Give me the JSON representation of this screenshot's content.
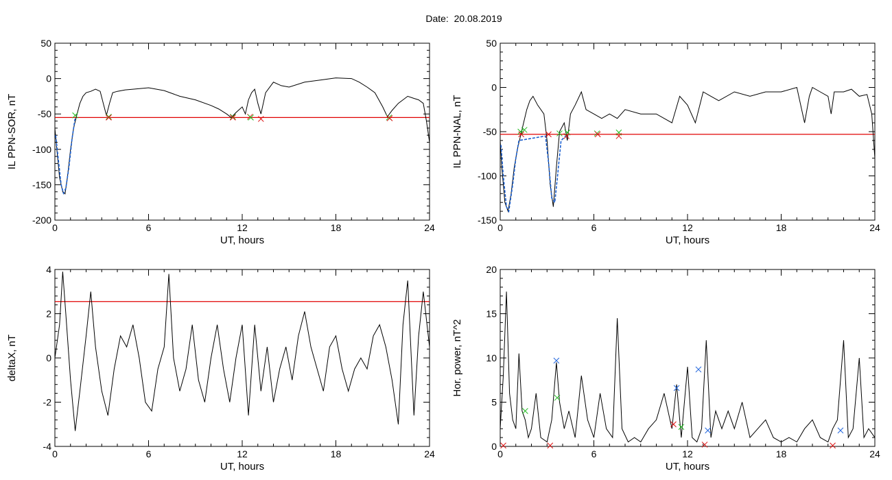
{
  "header": {
    "date_label": "Date:  20.08.2019"
  },
  "colors": {
    "trace": "#000000",
    "threshold": "#e00000",
    "fit": "#1a5fd0",
    "marker_green": "#22bb22",
    "marker_red": "#dd1111",
    "marker_blue": "#2266dd"
  },
  "chart_data": [
    {
      "id": "ppn-sor",
      "type": "line",
      "xlabel": "UT, hours",
      "ylabel": "IL PPN-SOR, nT",
      "xlim": [
        0,
        24
      ],
      "ylim": [
        -200,
        50
      ],
      "xticks": [
        0,
        6,
        12,
        18,
        24
      ],
      "yticks": [
        -200,
        -150,
        -100,
        -50,
        0,
        50
      ],
      "threshold": -55,
      "series": [
        {
          "x": [
            0,
            0.1,
            0.3,
            0.5,
            0.65,
            0.8,
            1.0,
            1.2,
            1.4,
            1.6,
            1.8,
            2.0,
            2.3,
            2.6,
            2.9,
            3.1,
            3.3,
            3.5,
            3.7,
            4.0,
            4.5,
            5,
            6,
            7,
            8,
            9,
            10,
            10.5,
            11,
            11.3,
            11.6,
            12.0,
            12.2,
            12.4,
            12.6,
            12.8,
            13.0,
            13.2,
            13.5,
            14,
            14.5,
            15,
            16,
            17,
            18,
            19,
            19.5,
            20,
            20.5,
            21,
            21.3,
            21.6,
            22,
            22.3,
            22.6,
            23,
            23.3,
            23.6,
            23.8,
            24
          ],
          "y": [
            -70,
            -95,
            -140,
            -160,
            -163,
            -140,
            -100,
            -70,
            -52,
            -35,
            -25,
            -20,
            -18,
            -15,
            -18,
            -35,
            -52,
            -35,
            -20,
            -18,
            -16,
            -15,
            -13,
            -17,
            -25,
            -30,
            -38,
            -43,
            -50,
            -55,
            -48,
            -40,
            -50,
            -30,
            -20,
            -15,
            -35,
            -50,
            -20,
            -5,
            -10,
            -12,
            -5,
            -2,
            1,
            0,
            -5,
            -12,
            -20,
            -40,
            -54,
            -45,
            -35,
            -30,
            -25,
            -28,
            -30,
            -35,
            -60,
            -90
          ]
        }
      ],
      "fit": {
        "x": [
          0.05,
          0.2,
          0.4,
          0.55,
          0.7,
          0.9,
          1.1,
          1.3
        ],
        "y": [
          -80,
          -110,
          -150,
          -162,
          -155,
          -125,
          -85,
          -55
        ]
      },
      "markers": [
        {
          "x": 1.3,
          "y": -52,
          "color": "green"
        },
        {
          "x": 3.45,
          "y": -54,
          "color": "green"
        },
        {
          "x": 3.45,
          "y": -55,
          "color": "red"
        },
        {
          "x": 11.4,
          "y": -54,
          "color": "green"
        },
        {
          "x": 11.4,
          "y": -55,
          "color": "red"
        },
        {
          "x": 12.5,
          "y": -54,
          "color": "red"
        },
        {
          "x": 12.55,
          "y": -55,
          "color": "green"
        },
        {
          "x": 13.2,
          "y": -57,
          "color": "red"
        },
        {
          "x": 21.4,
          "y": -55,
          "color": "green"
        },
        {
          "x": 21.45,
          "y": -56,
          "color": "red"
        }
      ]
    },
    {
      "id": "ppn-nal",
      "type": "line",
      "xlabel": "UT, hours",
      "ylabel": "IL PPN-NAL, nT",
      "xlim": [
        0,
        24
      ],
      "ylim": [
        -150,
        50
      ],
      "xticks": [
        0,
        6,
        12,
        18,
        24
      ],
      "yticks": [
        -150,
        -100,
        -50,
        0,
        50
      ],
      "threshold": -53,
      "series": [
        {
          "x": [
            0,
            0.1,
            0.3,
            0.5,
            0.7,
            0.9,
            1.1,
            1.3,
            1.5,
            1.7,
            1.9,
            2.1,
            2.4,
            2.8,
            3.0,
            3.2,
            3.4,
            3.6,
            3.8,
            4.1,
            4.3,
            4.5,
            4.8,
            5.2,
            5.5,
            6,
            6.5,
            7,
            7.5,
            8,
            9,
            10,
            11,
            11.5,
            12,
            12.5,
            13,
            13.5,
            14,
            15,
            16,
            17,
            18,
            19,
            19.5,
            19.8,
            20,
            20.5,
            21,
            21.2,
            21.4,
            22,
            22.5,
            23,
            23.5,
            23.8,
            24
          ],
          "y": [
            -60,
            -90,
            -130,
            -140,
            -120,
            -90,
            -70,
            -55,
            -40,
            -25,
            -15,
            -10,
            -20,
            -30,
            -60,
            -110,
            -135,
            -90,
            -50,
            -40,
            -60,
            -30,
            -20,
            -5,
            -25,
            -30,
            -35,
            -30,
            -35,
            -25,
            -30,
            -30,
            -40,
            -10,
            -20,
            -40,
            -5,
            -10,
            -15,
            -5,
            -10,
            -5,
            -5,
            0,
            -40,
            -10,
            0,
            -5,
            -10,
            -30,
            -5,
            -5,
            -2,
            -10,
            -8,
            -30,
            -80
          ]
        }
      ],
      "fit": {
        "x": [
          0.05,
          0.2,
          0.4,
          0.55,
          0.8,
          1.0,
          1.2,
          2.9,
          3.1,
          3.3,
          3.5,
          3.7,
          3.9,
          4.2
        ],
        "y": [
          -65,
          -100,
          -135,
          -140,
          -110,
          -80,
          -60,
          -55,
          -85,
          -125,
          -130,
          -95,
          -60,
          -55
        ]
      },
      "markers": [
        {
          "x": 1.3,
          "y": -50,
          "color": "green"
        },
        {
          "x": 1.35,
          "y": -53,
          "color": "red"
        },
        {
          "x": 1.55,
          "y": -48,
          "color": "green"
        },
        {
          "x": 3.1,
          "y": -53,
          "color": "red"
        },
        {
          "x": 3.8,
          "y": -52,
          "color": "green"
        },
        {
          "x": 4.3,
          "y": -51,
          "color": "green"
        },
        {
          "x": 4.25,
          "y": -55,
          "color": "red"
        },
        {
          "x": 6.2,
          "y": -52,
          "color": "green"
        },
        {
          "x": 6.25,
          "y": -53,
          "color": "red"
        },
        {
          "x": 7.6,
          "y": -51,
          "color": "green"
        },
        {
          "x": 7.6,
          "y": -55,
          "color": "red"
        }
      ]
    },
    {
      "id": "deltax",
      "type": "line",
      "xlabel": "UT, hours",
      "ylabel": "deltaX, nT",
      "xlim": [
        0,
        24
      ],
      "ylim": [
        -4,
        4
      ],
      "xticks": [
        0,
        6,
        12,
        18,
        24
      ],
      "yticks": [
        -4,
        -2,
        0,
        2,
        4
      ],
      "threshold": 2.55,
      "series": [
        {
          "x": [
            0,
            0.3,
            0.5,
            0.7,
            1.0,
            1.3,
            1.6,
            2.0,
            2.3,
            2.6,
            3.0,
            3.4,
            3.8,
            4.2,
            4.6,
            5.0,
            5.4,
            5.8,
            6.2,
            6.6,
            7.0,
            7.3,
            7.6,
            8.0,
            8.4,
            8.8,
            9.2,
            9.6,
            10.0,
            10.4,
            10.8,
            11.2,
            11.6,
            12.0,
            12.4,
            12.8,
            13.2,
            13.6,
            14.0,
            14.4,
            14.8,
            15.2,
            15.6,
            16.0,
            16.4,
            16.8,
            17.2,
            17.6,
            18.0,
            18.4,
            18.8,
            19.2,
            19.6,
            20.0,
            20.4,
            20.8,
            21.2,
            21.6,
            22.0,
            22.3,
            22.6,
            23.0,
            23.3,
            23.6,
            24
          ],
          "y": [
            0,
            1.5,
            3.9,
            2.0,
            -1.0,
            -3.3,
            -1.5,
            1.0,
            3.0,
            0.5,
            -1.5,
            -2.6,
            -0.5,
            1.0,
            0.5,
            1.5,
            0.0,
            -2.0,
            -2.4,
            -0.5,
            0.5,
            3.8,
            0.0,
            -1.5,
            -0.5,
            1.5,
            -1.0,
            -2.0,
            0.0,
            1.5,
            -0.5,
            -2.0,
            0.0,
            1.5,
            -2.6,
            1.5,
            -1.5,
            0.5,
            -2.0,
            -0.5,
            0.5,
            -1.0,
            1.0,
            2.1,
            0.5,
            -0.5,
            -1.5,
            0.5,
            1.0,
            -0.5,
            -1.5,
            -0.5,
            0.0,
            -0.5,
            1.0,
            1.5,
            0.5,
            -1.0,
            -3.0,
            1.5,
            3.5,
            -2.6,
            1.0,
            3.0,
            0.5
          ]
        }
      ]
    },
    {
      "id": "hor-power",
      "type": "line",
      "xlabel": "UT, hours",
      "ylabel": "Hor. power, nT^2",
      "xlim": [
        0,
        24
      ],
      "ylim": [
        0,
        20
      ],
      "xticks": [
        0,
        6,
        12,
        18,
        24
      ],
      "yticks": [
        0,
        5,
        10,
        15,
        20
      ],
      "series": [
        {
          "x": [
            0,
            0.2,
            0.4,
            0.6,
            0.8,
            1.0,
            1.2,
            1.4,
            1.6,
            1.8,
            2.0,
            2.3,
            2.6,
            3.0,
            3.3,
            3.6,
            3.8,
            4.1,
            4.4,
            4.8,
            5.2,
            5.6,
            6.0,
            6.4,
            6.8,
            7.2,
            7.5,
            7.8,
            8.2,
            8.6,
            9.0,
            9.5,
            10.0,
            10.5,
            11.0,
            11.3,
            11.6,
            12.0,
            12.3,
            12.6,
            12.9,
            13.2,
            13.5,
            13.8,
            14.2,
            14.6,
            15.0,
            15.5,
            16.0,
            16.5,
            17.0,
            17.5,
            18.0,
            18.5,
            19.0,
            19.5,
            20.0,
            20.5,
            21.0,
            21.3,
            21.6,
            22.0,
            22.3,
            22.6,
            23.0,
            23.3,
            23.6,
            24
          ],
          "y": [
            2,
            8,
            17.5,
            6,
            3,
            2,
            10.5,
            4,
            3,
            1,
            2,
            6,
            1,
            0.5,
            3,
            9.5,
            5,
            2,
            4,
            1,
            8,
            3,
            1,
            6,
            2,
            1,
            14.5,
            2,
            0.5,
            1,
            0.5,
            2,
            3,
            6,
            2,
            7,
            1,
            9,
            1,
            0.5,
            2,
            12,
            1,
            4,
            2,
            4,
            2,
            5,
            1,
            2,
            3,
            1,
            0.5,
            1,
            0.5,
            2,
            3,
            1,
            0.5,
            2,
            3,
            12,
            1,
            2,
            10,
            1,
            2,
            1
          ]
        }
      ],
      "markers": [
        {
          "x": 0.2,
          "y": 0.1,
          "color": "red"
        },
        {
          "x": 1.6,
          "y": 4,
          "color": "green"
        },
        {
          "x": 3.2,
          "y": 0.1,
          "color": "red"
        },
        {
          "x": 3.6,
          "y": 9.7,
          "color": "blue"
        },
        {
          "x": 3.65,
          "y": 5.5,
          "color": "green"
        },
        {
          "x": 11.1,
          "y": 2.5,
          "color": "red"
        },
        {
          "x": 11.3,
          "y": 6.6,
          "color": "blue"
        },
        {
          "x": 11.6,
          "y": 2.2,
          "color": "green"
        },
        {
          "x": 12.7,
          "y": 8.7,
          "color": "blue"
        },
        {
          "x": 13.1,
          "y": 0.2,
          "color": "red"
        },
        {
          "x": 13.3,
          "y": 1.8,
          "color": "blue"
        },
        {
          "x": 21.3,
          "y": 0.1,
          "color": "red"
        },
        {
          "x": 21.8,
          "y": 1.8,
          "color": "blue"
        }
      ]
    }
  ]
}
